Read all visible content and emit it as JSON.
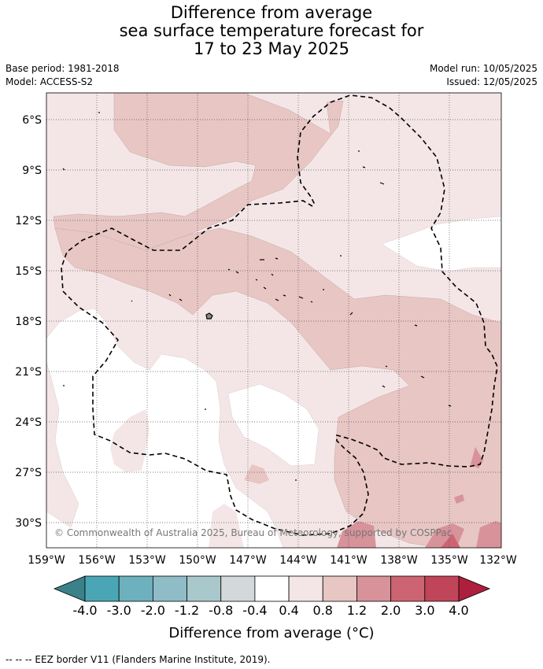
{
  "title": {
    "line1": "Difference from average",
    "line2": "sea surface temperature forecast for",
    "line3": "17 to 23 May 2025"
  },
  "meta": {
    "base_period": "Base period: 1981-2018",
    "model": "Model: ACCESS-S2",
    "model_run": "Model run: 10/05/2025",
    "issued": "Issued: 12/05/2025"
  },
  "map": {
    "lat_labels": [
      "6°S",
      "9°S",
      "12°S",
      "15°S",
      "18°S",
      "21°S",
      "24°S",
      "27°S",
      "30°S"
    ],
    "lon_labels": [
      "159°W",
      "156°W",
      "153°W",
      "150°W",
      "147°W",
      "144°W",
      "141°W",
      "138°W",
      "135°W",
      "132°W"
    ],
    "copyright": "© Commonwealth of Australia 2025, Bureau of Meteorology, supported by COSPPac"
  },
  "colorbar": {
    "tick_labels": [
      "-4.0",
      "-3.0",
      "-2.0",
      "-1.2",
      "-0.8",
      "-0.4",
      "0.4",
      "0.8",
      "1.2",
      "2.0",
      "3.0",
      "4.0"
    ],
    "colors": [
      "#3b8189",
      "#4aa6b5",
      "#6db0be",
      "#8fbcc6",
      "#a9c8cb",
      "#d3d9db",
      "#ffffff",
      "#f4e6e6",
      "#e7c6c4",
      "#d7929a",
      "#cd6471",
      "#c04559",
      "#ad1f3c"
    ],
    "title": "Difference from average (°C)"
  },
  "footnote": "-- -- -- EEZ border V11 (Flanders Marine Institute, 2019)."
}
